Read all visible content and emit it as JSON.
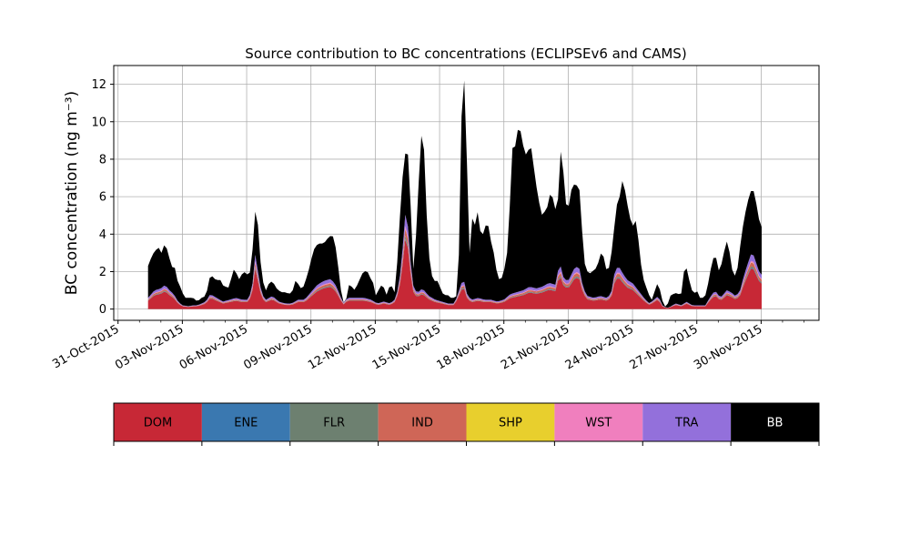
{
  "chart_data": {
    "type": "area",
    "stacked": true,
    "title": "Source contribution to BC concentrations (ECLIPSEv6 and CAMS)",
    "ylabel": "BC concentration (ng m⁻³)",
    "xlabel": "",
    "ylim": [
      -0.6,
      13
    ],
    "yticks": [
      0,
      2,
      4,
      6,
      8,
      10,
      12
    ],
    "xlim": [
      -0.2,
      32.7
    ],
    "grid": true,
    "xtick_days": [
      0,
      3,
      6,
      9,
      12,
      15,
      18,
      21,
      24,
      27,
      30
    ],
    "xtick_labels": [
      "31-Oct-2015",
      "03-Nov-2015",
      "06-Nov-2015",
      "09-Nov-2015",
      "12-Nov-2015",
      "15-Nov-2015",
      "18-Nov-2015",
      "21-Nov-2015",
      "24-Nov-2015",
      "27-Nov-2015",
      "30-Nov-2015"
    ],
    "x_start_day": 1.4,
    "x_step_days": 0.125,
    "series": [
      {
        "name": "DOM",
        "color": "#c72836"
      },
      {
        "name": "ENE",
        "color": "#3a78b0"
      },
      {
        "name": "FLR",
        "color": "#6d8070"
      },
      {
        "name": "IND",
        "color": "#cf6657"
      },
      {
        "name": "SHP",
        "color": "#e8cf2d"
      },
      {
        "name": "WST",
        "color": "#f07fbe"
      },
      {
        "name": "TRA",
        "color": "#9370db"
      },
      {
        "name": "BB",
        "color": "#000000"
      }
    ],
    "total_keypoints": [
      [
        1.4,
        2.3
      ],
      [
        1.6,
        2.9
      ],
      [
        1.8,
        3.2
      ],
      [
        1.95,
        3.3
      ],
      [
        2.05,
        2.9
      ],
      [
        2.15,
        3.4
      ],
      [
        2.3,
        3.2
      ],
      [
        2.4,
        2.7
      ],
      [
        2.5,
        2.1
      ],
      [
        2.6,
        2.7
      ],
      [
        2.7,
        1.7
      ],
      [
        2.9,
        1.2
      ],
      [
        3.1,
        0.6
      ],
      [
        3.3,
        0.6
      ],
      [
        3.5,
        0.6
      ],
      [
        3.7,
        0.4
      ],
      [
        3.9,
        0.6
      ],
      [
        4.1,
        0.7
      ],
      [
        4.3,
        1.8
      ],
      [
        4.5,
        1.7
      ],
      [
        4.6,
        1.3
      ],
      [
        4.7,
        1.8
      ],
      [
        4.85,
        1.3
      ],
      [
        5.0,
        1.2
      ],
      [
        5.15,
        1.15
      ],
      [
        5.3,
        1.7
      ],
      [
        5.45,
        2.3
      ],
      [
        5.6,
        1.5
      ],
      [
        5.8,
        1.9
      ],
      [
        5.95,
        2.0
      ],
      [
        6.1,
        1.7
      ],
      [
        6.2,
        2.2
      ],
      [
        6.3,
        3.5
      ],
      [
        6.4,
        5.2
      ],
      [
        6.5,
        5.0
      ],
      [
        6.6,
        3.0
      ],
      [
        6.75,
        1.5
      ],
      [
        6.9,
        1.0
      ],
      [
        7.05,
        1.4
      ],
      [
        7.2,
        1.5
      ],
      [
        7.4,
        1.1
      ],
      [
        7.6,
        0.9
      ],
      [
        7.8,
        0.9
      ],
      [
        8.0,
        0.8
      ],
      [
        8.15,
        1.0
      ],
      [
        8.3,
        1.6
      ],
      [
        8.5,
        1.1
      ],
      [
        8.65,
        1.2
      ],
      [
        8.8,
        1.7
      ],
      [
        8.95,
        2.3
      ],
      [
        9.1,
        3.1
      ],
      [
        9.25,
        3.4
      ],
      [
        9.4,
        3.5
      ],
      [
        9.6,
        3.5
      ],
      [
        9.8,
        3.8
      ],
      [
        10.0,
        4.0
      ],
      [
        10.15,
        3.3
      ],
      [
        10.3,
        2.0
      ],
      [
        10.45,
        0.5
      ],
      [
        10.6,
        0.2
      ],
      [
        10.75,
        1.3
      ],
      [
        10.9,
        1.2
      ],
      [
        11.05,
        1.0
      ],
      [
        11.2,
        1.4
      ],
      [
        11.4,
        1.9
      ],
      [
        11.6,
        2.1
      ],
      [
        11.75,
        1.7
      ],
      [
        11.9,
        1.4
      ],
      [
        12.05,
        0.6
      ],
      [
        12.2,
        1.2
      ],
      [
        12.35,
        1.3
      ],
      [
        12.55,
        0.7
      ],
      [
        12.7,
        1.4
      ],
      [
        12.9,
        0.9
      ],
      [
        13.0,
        2.0
      ],
      [
        13.1,
        4.0
      ],
      [
        13.25,
        6.8
      ],
      [
        13.4,
        8.3
      ],
      [
        13.5,
        8.5
      ],
      [
        13.6,
        7.5
      ],
      [
        13.7,
        3.5
      ],
      [
        13.8,
        1.7
      ],
      [
        13.95,
        5.0
      ],
      [
        14.1,
        8.5
      ],
      [
        14.2,
        10.0
      ],
      [
        14.3,
        8.0
      ],
      [
        14.45,
        3.5
      ],
      [
        14.6,
        1.9
      ],
      [
        14.75,
        1.5
      ],
      [
        14.9,
        1.5
      ],
      [
        15.05,
        1.1
      ],
      [
        15.2,
        0.7
      ],
      [
        15.35,
        0.8
      ],
      [
        15.5,
        0.6
      ],
      [
        15.65,
        0.6
      ],
      [
        15.8,
        0.7
      ],
      [
        15.95,
        4.0
      ],
      [
        16.05,
        12.4
      ],
      [
        16.15,
        12.2
      ],
      [
        16.3,
        7.0
      ],
      [
        16.4,
        3.0
      ],
      [
        16.55,
        5.2
      ],
      [
        16.65,
        4.5
      ],
      [
        16.8,
        5.3
      ],
      [
        16.95,
        3.6
      ],
      [
        17.1,
        4.4
      ],
      [
        17.25,
        4.6
      ],
      [
        17.4,
        3.6
      ],
      [
        17.55,
        2.9
      ],
      [
        17.7,
        1.7
      ],
      [
        17.85,
        1.5
      ],
      [
        18.0,
        2.0
      ],
      [
        18.15,
        3.0
      ],
      [
        18.3,
        6.0
      ],
      [
        18.4,
        8.6
      ],
      [
        18.55,
        8.7
      ],
      [
        18.7,
        10.0
      ],
      [
        18.85,
        9.0
      ],
      [
        19.0,
        8.2
      ],
      [
        19.15,
        8.5
      ],
      [
        19.3,
        8.6
      ],
      [
        19.45,
        7.0
      ],
      [
        19.6,
        6.0
      ],
      [
        19.75,
        5.0
      ],
      [
        19.9,
        5.2
      ],
      [
        20.05,
        5.5
      ],
      [
        20.2,
        6.4
      ],
      [
        20.35,
        5.5
      ],
      [
        20.5,
        5.0
      ],
      [
        20.6,
        8.5
      ],
      [
        20.7,
        8.3
      ],
      [
        20.8,
        7.0
      ],
      [
        20.9,
        5.6
      ],
      [
        21.05,
        5.5
      ],
      [
        21.2,
        6.8
      ],
      [
        21.35,
        6.5
      ],
      [
        21.5,
        6.8
      ],
      [
        21.6,
        5.0
      ],
      [
        21.75,
        2.5
      ],
      [
        21.9,
        2.0
      ],
      [
        22.05,
        1.9
      ],
      [
        22.2,
        2.1
      ],
      [
        22.35,
        2.2
      ],
      [
        22.5,
        3.0
      ],
      [
        22.65,
        2.8
      ],
      [
        22.8,
        2.0
      ],
      [
        22.95,
        2.3
      ],
      [
        23.1,
        3.8
      ],
      [
        23.25,
        5.5
      ],
      [
        23.4,
        6.0
      ],
      [
        23.55,
        7.0
      ],
      [
        23.7,
        6.0
      ],
      [
        23.85,
        5.0
      ],
      [
        24.0,
        4.4
      ],
      [
        24.15,
        4.7
      ],
      [
        24.3,
        3.5
      ],
      [
        24.45,
        1.8
      ],
      [
        24.6,
        1.3
      ],
      [
        24.75,
        0.8
      ],
      [
        24.9,
        0.5
      ],
      [
        25.05,
        1.0
      ],
      [
        25.2,
        1.5
      ],
      [
        25.35,
        0.6
      ],
      [
        25.5,
        0.1
      ],
      [
        25.65,
        0.3
      ],
      [
        25.8,
        0.8
      ],
      [
        25.95,
        0.8
      ],
      [
        26.1,
        0.9
      ],
      [
        26.25,
        0.6
      ],
      [
        26.4,
        2.0
      ],
      [
        26.55,
        2.2
      ],
      [
        26.7,
        1.2
      ],
      [
        26.85,
        0.8
      ],
      [
        27.0,
        1.0
      ],
      [
        27.15,
        0.6
      ],
      [
        27.3,
        0.6
      ],
      [
        27.45,
        0.8
      ],
      [
        27.6,
        1.9
      ],
      [
        27.75,
        2.6
      ],
      [
        27.85,
        3.1
      ],
      [
        28.0,
        2.0
      ],
      [
        28.15,
        2.4
      ],
      [
        28.3,
        3.2
      ],
      [
        28.45,
        3.8
      ],
      [
        28.6,
        2.3
      ],
      [
        28.75,
        1.7
      ],
      [
        28.9,
        2.2
      ],
      [
        29.05,
        3.6
      ],
      [
        29.2,
        4.8
      ],
      [
        29.35,
        5.6
      ],
      [
        29.5,
        6.3
      ],
      [
        29.65,
        6.3
      ],
      [
        29.8,
        5.5
      ],
      [
        29.9,
        4.8
      ],
      [
        30.05,
        4.3
      ]
    ],
    "fossil_keypoints": [
      [
        1.4,
        0.6
      ],
      [
        1.7,
        1.0
      ],
      [
        2.0,
        1.1
      ],
      [
        2.2,
        1.3
      ],
      [
        2.4,
        1.0
      ],
      [
        2.6,
        0.8
      ],
      [
        2.8,
        0.4
      ],
      [
        3.0,
        0.2
      ],
      [
        3.3,
        0.15
      ],
      [
        3.5,
        0.2
      ],
      [
        3.7,
        0.2
      ],
      [
        3.9,
        0.3
      ],
      [
        4.1,
        0.4
      ],
      [
        4.3,
        0.8
      ],
      [
        4.6,
        0.6
      ],
      [
        4.9,
        0.4
      ],
      [
        5.2,
        0.5
      ],
      [
        5.5,
        0.6
      ],
      [
        5.8,
        0.5
      ],
      [
        6.1,
        0.5
      ],
      [
        6.3,
        1.5
      ],
      [
        6.4,
        2.9
      ],
      [
        6.5,
        2.2
      ],
      [
        6.7,
        0.8
      ],
      [
        6.9,
        0.5
      ],
      [
        7.2,
        0.7
      ],
      [
        7.5,
        0.4
      ],
      [
        7.8,
        0.3
      ],
      [
        8.1,
        0.3
      ],
      [
        8.4,
        0.5
      ],
      [
        8.7,
        0.5
      ],
      [
        9.0,
        0.9
      ],
      [
        9.3,
        1.3
      ],
      [
        9.6,
        1.5
      ],
      [
        9.9,
        1.6
      ],
      [
        10.1,
        1.4
      ],
      [
        10.3,
        0.9
      ],
      [
        10.5,
        0.3
      ],
      [
        10.7,
        0.6
      ],
      [
        10.9,
        0.6
      ],
      [
        11.2,
        0.6
      ],
      [
        11.5,
        0.6
      ],
      [
        11.8,
        0.5
      ],
      [
        12.1,
        0.3
      ],
      [
        12.4,
        0.4
      ],
      [
        12.7,
        0.3
      ],
      [
        12.9,
        0.5
      ],
      [
        13.1,
        1.2
      ],
      [
        13.3,
        3.5
      ],
      [
        13.45,
        5.8
      ],
      [
        13.6,
        3.0
      ],
      [
        13.8,
        1.0
      ],
      [
        14.0,
        0.9
      ],
      [
        14.2,
        1.1
      ],
      [
        14.5,
        0.7
      ],
      [
        14.8,
        0.5
      ],
      [
        15.1,
        0.4
      ],
      [
        15.4,
        0.3
      ],
      [
        15.7,
        0.3
      ],
      [
        16.0,
        1.3
      ],
      [
        16.1,
        1.7
      ],
      [
        16.3,
        0.7
      ],
      [
        16.5,
        0.5
      ],
      [
        16.8,
        0.6
      ],
      [
        17.1,
        0.5
      ],
      [
        17.4,
        0.5
      ],
      [
        17.7,
        0.4
      ],
      [
        18.0,
        0.5
      ],
      [
        18.3,
        0.8
      ],
      [
        18.6,
        0.9
      ],
      [
        18.9,
        1.0
      ],
      [
        19.2,
        1.2
      ],
      [
        19.5,
        1.1
      ],
      [
        19.8,
        1.2
      ],
      [
        20.1,
        1.4
      ],
      [
        20.4,
        1.3
      ],
      [
        20.6,
        2.5
      ],
      [
        20.8,
        1.6
      ],
      [
        21.0,
        1.5
      ],
      [
        21.3,
        2.2
      ],
      [
        21.5,
        2.3
      ],
      [
        21.7,
        1.1
      ],
      [
        21.9,
        0.7
      ],
      [
        22.2,
        0.6
      ],
      [
        22.5,
        0.7
      ],
      [
        22.8,
        0.6
      ],
      [
        23.0,
        0.8
      ],
      [
        23.2,
        2.2
      ],
      [
        23.4,
        2.2
      ],
      [
        23.6,
        1.8
      ],
      [
        23.8,
        1.5
      ],
      [
        24.0,
        1.4
      ],
      [
        24.2,
        1.1
      ],
      [
        24.4,
        0.8
      ],
      [
        24.6,
        0.5
      ],
      [
        24.8,
        0.3
      ],
      [
        25.0,
        0.5
      ],
      [
        25.2,
        0.7
      ],
      [
        25.4,
        0.2
      ],
      [
        25.6,
        0.05
      ],
      [
        25.8,
        0.15
      ],
      [
        26.0,
        0.3
      ],
      [
        26.3,
        0.2
      ],
      [
        26.5,
        0.4
      ],
      [
        26.8,
        0.2
      ],
      [
        27.1,
        0.2
      ],
      [
        27.4,
        0.2
      ],
      [
        27.6,
        0.6
      ],
      [
        27.85,
        1.0
      ],
      [
        28.1,
        0.6
      ],
      [
        28.4,
        1.0
      ],
      [
        28.6,
        0.9
      ],
      [
        28.8,
        0.7
      ],
      [
        29.0,
        0.9
      ],
      [
        29.2,
        1.8
      ],
      [
        29.4,
        2.5
      ],
      [
        29.55,
        3.0
      ],
      [
        29.7,
        2.8
      ],
      [
        29.85,
        2.1
      ],
      [
        30.05,
        1.8
      ]
    ],
    "fossil_shares": {
      "DOM": 0.74,
      "ENE": 0.01,
      "FLR": 0.03,
      "IND": 0.07,
      "SHP": 0.005,
      "WST": 0.025,
      "TRA": 0.12
    }
  }
}
